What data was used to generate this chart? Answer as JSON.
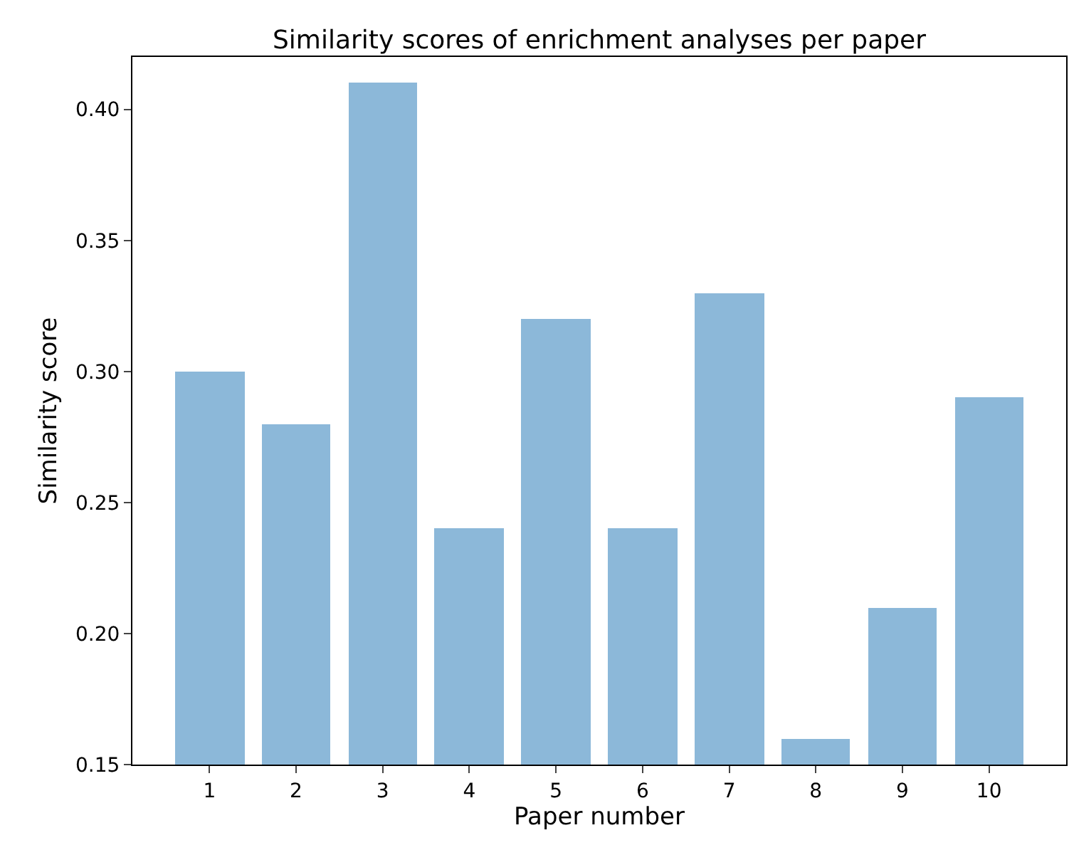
{
  "chart_data": {
    "type": "bar",
    "title": "Similarity scores of enrichment analyses per paper",
    "xlabel": "Paper number",
    "ylabel": "Similarity score",
    "x": [
      1,
      2,
      3,
      4,
      5,
      6,
      7,
      8,
      9,
      10
    ],
    "values": [
      0.3,
      0.28,
      0.41,
      0.24,
      0.32,
      0.24,
      0.33,
      0.16,
      0.21,
      0.29
    ],
    "color": "#8cb8d9",
    "xlim": [
      0.11,
      10.89
    ],
    "xticks": [
      1,
      2,
      3,
      4,
      5,
      6,
      7,
      8,
      9,
      10
    ],
    "ylim": [
      0.15,
      0.42
    ],
    "yticks": [
      0.15,
      {
        "value": 0.2,
        "label": "0.20"
      },
      0.25,
      {
        "value": 0.3,
        "label": "0.30"
      },
      0.35,
      {
        "value": 0.4,
        "label": "0.40"
      }
    ]
  }
}
